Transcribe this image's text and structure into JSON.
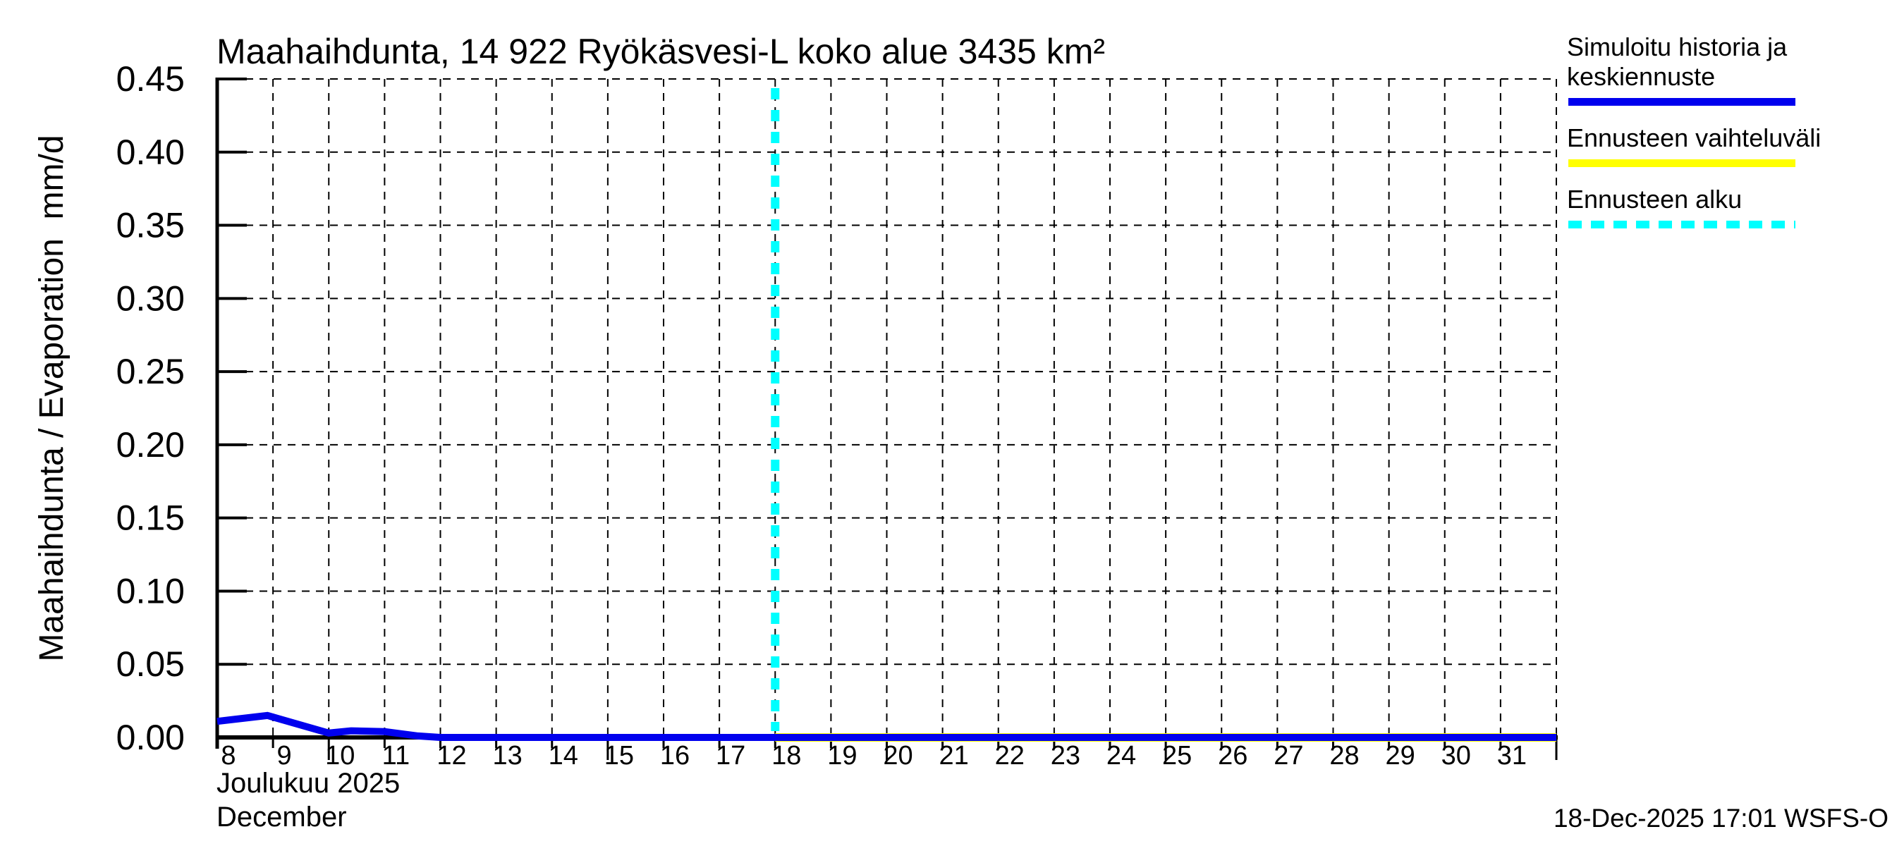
{
  "page": {
    "title": "Maahaihdunta, 14 922 Ryökäsvesi-L koko alue 3435 km²",
    "y_axis_label": "Maahaihdunta / Evaporation  mm/d",
    "month_label_fi": "Joulukuu 2025",
    "month_label_en": "December",
    "timestamp": "18-Dec-2025 17:01 WSFS-O"
  },
  "legend": {
    "items": [
      {
        "label": "Simuloitu historia ja keskiennuste",
        "color": "#0000ee",
        "line_style": "solid"
      },
      {
        "label": "Ennusteen vaihteluväli",
        "color": "#ffff00",
        "line_style": "solid"
      },
      {
        "label": "Ennusteen alku",
        "color": "#00ffff",
        "line_style": "dashed"
      }
    ]
  },
  "chart_data": {
    "type": "line",
    "title": "Maahaihdunta, 14 922 Ryökäsvesi-L koko alue 3435 km²",
    "xlabel": "Joulukuu 2025 / December",
    "ylabel": "Maahaihdunta / Evaporation  mm/d",
    "x_unit": "day of December 2025 (axis extends to 1 Jan)",
    "y_unit": "mm/d",
    "xlim": [
      8,
      32
    ],
    "ylim": [
      0,
      0.45
    ],
    "grid": true,
    "legend_position": "outside-top-right",
    "x_tick_days": [
      8,
      9,
      10,
      11,
      12,
      13,
      14,
      15,
      16,
      17,
      18,
      19,
      20,
      21,
      22,
      23,
      24,
      25,
      26,
      27,
      28,
      29,
      30,
      31
    ],
    "x_long_tick_days": [
      10,
      15,
      20,
      25,
      32
    ],
    "y_ticks": [
      0,
      0.05,
      0.1,
      0.15,
      0.2,
      0.25,
      0.3,
      0.35,
      0.4,
      0.45
    ],
    "y_tick_labels": [
      "0.00",
      "0.05",
      "0.10",
      "0.15",
      "0.20",
      "0.25",
      "0.30",
      "0.35",
      "0.40",
      "0.45"
    ],
    "forecast_start_day": 18,
    "colors": {
      "history_and_mean_forecast": "#0000ee",
      "forecast_range": "#ffff00",
      "forecast_start": "#00ffff",
      "axis_and_grid": "#000000"
    },
    "series": [
      {
        "name": "Simuloitu historia ja keskiennuste",
        "color": "#0000ee",
        "points_day_value": [
          [
            8.0,
            0.011
          ],
          [
            8.9,
            0.015
          ],
          [
            10.0,
            0.003
          ],
          [
            10.4,
            0.0045
          ],
          [
            11.0,
            0.004
          ],
          [
            11.6,
            0.001
          ],
          [
            12.0,
            0.0
          ],
          [
            32.0,
            0.0
          ]
        ]
      },
      {
        "name": "Ennusteen vaihteluväli",
        "color": "#ffff00",
        "points_day_value": [
          [
            18.0,
            0.0
          ],
          [
            32.0,
            0.0
          ]
        ],
        "note": "forecast range collapsed to zero, hidden behind mean line"
      }
    ]
  }
}
